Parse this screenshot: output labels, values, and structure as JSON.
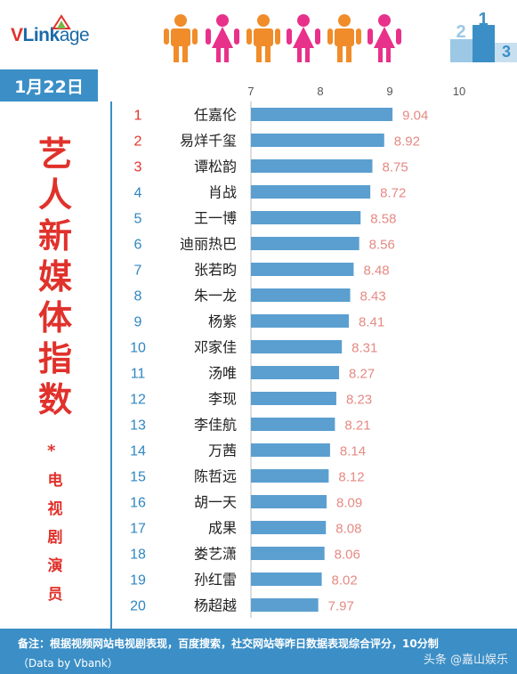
{
  "brand": {
    "logo_v": "V",
    "logo_link": "Link",
    "logo_age": "age"
  },
  "header": {
    "date": "1月22日"
  },
  "side": {
    "title_chars": [
      "艺",
      "人",
      "新",
      "媒",
      "体",
      "指",
      "数"
    ],
    "star": "*",
    "sub_chars": [
      "电",
      "视",
      "剧",
      "演",
      "员"
    ]
  },
  "footer": {
    "note": "备注：根据视频网站电视剧表现，百度搜索，社交网站等昨日数据表现综合评分，10分制",
    "source": "（Data by Vbank）",
    "watermark": "头条 @嘉山娱乐"
  },
  "colors": {
    "bar": "#5b9fd0",
    "rank": "#e0312b",
    "rank_alt": "#2f86c0",
    "value": "#e58a83",
    "accent": "#3b8fc6"
  },
  "chart_data": {
    "type": "bar",
    "orientation": "horizontal",
    "xlim": [
      7,
      10
    ],
    "x_ticks": [
      "7",
      "8",
      "9",
      "10"
    ],
    "ranks": [
      "1",
      "2",
      "3",
      "4",
      "5",
      "6",
      "7",
      "8",
      "9",
      "10",
      "11",
      "12",
      "13",
      "14",
      "15",
      "16",
      "17",
      "18",
      "19",
      "20"
    ],
    "categories": [
      "任嘉伦",
      "易烊千玺",
      "谭松韵",
      "肖战",
      "王一博",
      "迪丽热巴",
      "张若昀",
      "朱一龙",
      "杨紫",
      "邓家佳",
      "汤唯",
      "李现",
      "李佳航",
      "万茜",
      "陈哲远",
      "胡一天",
      "成果",
      "娄艺潇",
      "孙红雷",
      "杨超越"
    ],
    "values": [
      9.04,
      8.92,
      8.75,
      8.72,
      8.58,
      8.56,
      8.48,
      8.43,
      8.41,
      8.31,
      8.27,
      8.23,
      8.21,
      8.14,
      8.12,
      8.09,
      8.08,
      8.06,
      8.02,
      7.97
    ],
    "value_labels": [
      "9.04",
      "8.92",
      "8.75",
      "8.72",
      "8.58",
      "8.56",
      "8.48",
      "8.43",
      "8.41",
      "8.31",
      "8.27",
      "8.23",
      "8.21",
      "8.14",
      "8.12",
      "8.09",
      "8.08",
      "8.06",
      "8.02",
      "7.97"
    ]
  }
}
